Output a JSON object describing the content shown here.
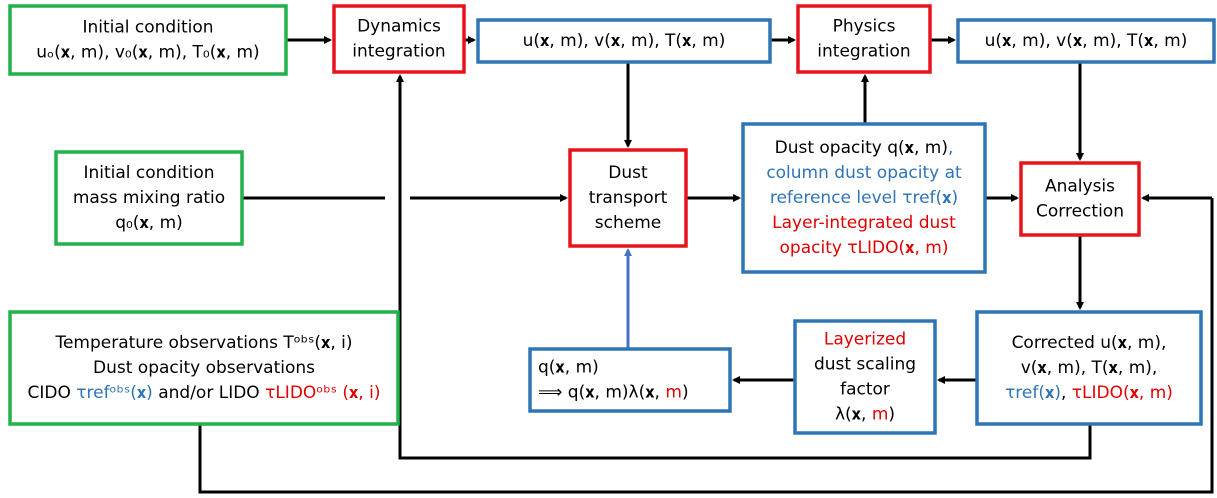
{
  "nodes": [
    {
      "border": "#22b14c",
      "lines": [
        [
          {
            "text": "Initial condition"
          }
        ],
        [
          {
            "text": "uₒ(𝐱, m), v₀(𝐱, m), T₀(𝐱, m)"
          }
        ]
      ]
    },
    {
      "border": "#e8141b",
      "lines": [
        [
          {
            "text": "Dynamics"
          }
        ],
        [
          {
            "text": "integration"
          }
        ]
      ]
    },
    {
      "border": "#2e75b6",
      "lines": [
        [
          {
            "text": "u(𝐱, m), v(𝐱, m), T(𝐱, m)"
          }
        ]
      ]
    },
    {
      "border": "#e8141b",
      "lines": [
        [
          {
            "text": "Physics"
          }
        ],
        [
          {
            "text": "integration"
          }
        ]
      ]
    },
    {
      "border": "#2e75b6",
      "lines": [
        [
          {
            "text": "u(𝐱, m), v(𝐱, m), T(𝐱, m)"
          }
        ]
      ]
    },
    {
      "border": "#22b14c",
      "lines": [
        [
          {
            "text": "Initial condition"
          }
        ],
        [
          {
            "text": "mass mixing ratio"
          }
        ],
        [
          {
            "text": "q₀(𝐱, m)"
          }
        ]
      ]
    },
    {
      "border": "#e8141b",
      "lines": [
        [
          {
            "text": "Dust"
          }
        ],
        [
          {
            "text": "transport"
          }
        ],
        [
          {
            "text": "scheme"
          }
        ]
      ]
    },
    {
      "border": "#2e75b6",
      "lines": [
        [
          {
            "text": "Dust opacity q(𝐱, m)"
          },
          {
            "text": ",",
            "color": "#2e75b6"
          }
        ],
        [
          {
            "text": "column dust opacity at",
            "color": "#2e75b6"
          }
        ],
        [
          {
            "text": "reference level τref(𝐱)",
            "color": "#2e75b6"
          }
        ],
        [
          {
            "text": "Layer-integrated dust",
            "color": "#e00000"
          }
        ],
        [
          {
            "text": "opacity τLIDO(𝐱, m)",
            "color": "#e00000"
          }
        ]
      ]
    },
    {
      "border": "#e8141b",
      "lines": [
        [
          {
            "text": "Analysis"
          }
        ],
        [
          {
            "text": "Correction"
          }
        ]
      ]
    },
    {
      "border": "#22b14c",
      "lines": [
        [
          {
            "text": "Temperature observations Tᵒᵇˢ(𝐱, i)"
          }
        ],
        [
          {
            "text": "Dust opacity observations"
          }
        ],
        [
          {
            "text": "CIDO "
          },
          {
            "text": "τrefᵒᵇˢ(𝐱)",
            "color": "#2e75b6"
          },
          {
            "text": " and/or LIDO "
          },
          {
            "text": "τLIDOᵒᵇˢ (𝐱, i)",
            "color": "#e00000"
          }
        ]
      ]
    },
    {
      "border": "#2e75b6",
      "lines": [
        [
          {
            "text": "q(𝐱, m)"
          }
        ],
        [
          {
            "text": "⟹ q(𝐱, m)λ(𝐱, "
          },
          {
            "text": "m",
            "color": "#e00000"
          },
          {
            "text": ")"
          }
        ]
      ]
    },
    {
      "border": "#2e75b6",
      "lines": [
        [
          {
            "text": "Layerized",
            "color": "#e00000"
          }
        ],
        [
          {
            "text": "dust scaling"
          }
        ],
        [
          {
            "text": "factor"
          }
        ],
        [
          {
            "text": "λ(𝐱, "
          },
          {
            "text": "m",
            "color": "#e00000"
          },
          {
            "text": ")"
          }
        ]
      ]
    },
    {
      "border": "#2e75b6",
      "lines": [
        [
          {
            "text": "Corrected u(𝐱, m),"
          }
        ],
        [
          {
            "text": "v(𝐱, m), T(𝐱, m),"
          }
        ],
        [
          {
            "text": "τref(𝐱)",
            "color": "#2e75b6"
          },
          {
            "text": ", "
          },
          {
            "text": "τLIDO(𝐱, m)",
            "color": "#e00000"
          }
        ]
      ]
    }
  ]
}
